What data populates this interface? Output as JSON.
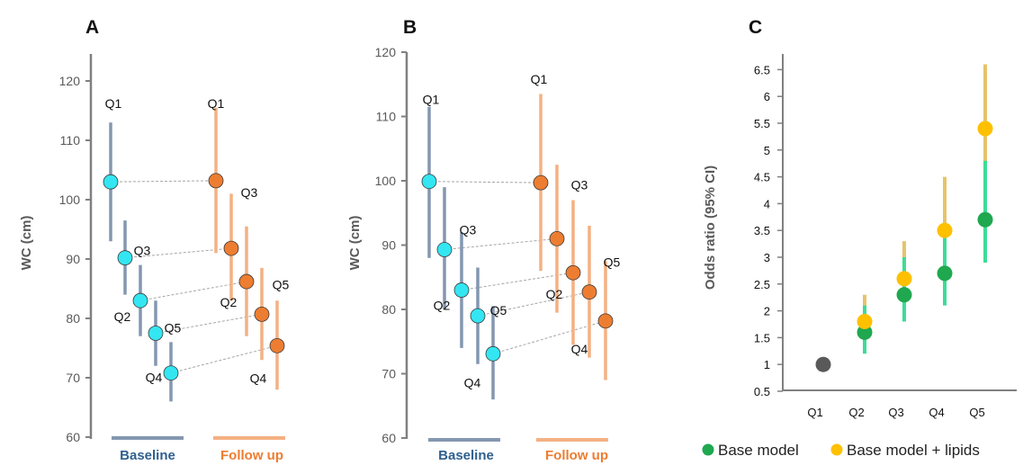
{
  "colors": {
    "axis": "#808080",
    "baseline_bar": "#8497B0",
    "baseline_dot": "#33E6F2",
    "followup_bar": "#F4B183",
    "followup_dot": "#ED7D31",
    "baseline_text": "#2E5F8F",
    "followup_text": "#ED7D31",
    "connector": "#A6A6A6",
    "base_model": "#1FA84F",
    "base_model_ci": "#3DDC97",
    "lipids_model": "#FFC000",
    "lipids_ci": "#E6C36B",
    "reference": "#595959"
  },
  "chart_data": [
    {
      "panel": "A",
      "type": "scatter",
      "ylabel": "WC (cm)",
      "ylim": [
        60,
        125
      ],
      "yticks": [
        60,
        70,
        80,
        90,
        100,
        110,
        120
      ],
      "groups": [
        "Baseline",
        "Follow up"
      ],
      "series": [
        {
          "name": "Baseline",
          "points": [
            {
              "label": "Q1",
              "y": 103,
              "lo": 93,
              "hi": 113
            },
            {
              "label": "Q3",
              "y": 90.2,
              "lo": 84,
              "hi": 96.5
            },
            {
              "label": "Q2",
              "y": 83,
              "lo": 77,
              "hi": 89
            },
            {
              "label": "Q5",
              "y": 77.5,
              "lo": 72,
              "hi": 83
            },
            {
              "label": "Q4",
              "y": 70.8,
              "lo": 66,
              "hi": 76
            }
          ]
        },
        {
          "name": "Follow up",
          "points": [
            {
              "label": "Q1",
              "y": 103.2,
              "lo": 91,
              "hi": 115.5
            },
            {
              "label": "Q3",
              "y": 91.8,
              "lo": 83,
              "hi": 101
            },
            {
              "label": "Q2",
              "y": 86.2,
              "lo": 77,
              "hi": 95.5
            },
            {
              "label": "Q5",
              "y": 80.7,
              "lo": 73,
              "hi": 88.5
            },
            {
              "label": "Q4",
              "y": 75.4,
              "lo": 68,
              "hi": 83
            }
          ]
        }
      ]
    },
    {
      "panel": "B",
      "type": "scatter",
      "ylabel": "WC (cm)",
      "ylim": [
        60,
        120
      ],
      "yticks": [
        60,
        70,
        80,
        90,
        100,
        110,
        120
      ],
      "groups": [
        "Baseline",
        "Follow up"
      ],
      "series": [
        {
          "name": "Baseline",
          "points": [
            {
              "label": "Q1",
              "y": 99.9,
              "lo": 88,
              "hi": 111.5
            },
            {
              "label": "Q3",
              "y": 89.3,
              "lo": 80,
              "hi": 99
            },
            {
              "label": "Q2",
              "y": 83,
              "lo": 74,
              "hi": 92
            },
            {
              "label": "Q5",
              "y": 79,
              "lo": 71.5,
              "hi": 86.5
            },
            {
              "label": "Q4",
              "y": 73.1,
              "lo": 66,
              "hi": 80.5
            }
          ]
        },
        {
          "name": "Follow up",
          "points": [
            {
              "label": "Q1",
              "y": 99.7,
              "lo": 86,
              "hi": 113.5
            },
            {
              "label": "Q3",
              "y": 91,
              "lo": 79.5,
              "hi": 102.5
            },
            {
              "label": "Q2",
              "y": 85.7,
              "lo": 74.5,
              "hi": 97
            },
            {
              "label": "Q5",
              "y": 82.7,
              "lo": 72.5,
              "hi": 93
            },
            {
              "label": "Q4",
              "y": 78.2,
              "lo": 69,
              "hi": 87.5
            }
          ]
        }
      ]
    },
    {
      "panel": "C",
      "type": "scatter",
      "ylabel": "Odds ratio (95% CI)",
      "ylim": [
        0.5,
        6.8
      ],
      "yticks": [
        "0.5",
        "1",
        "1.5",
        "2",
        "2.5",
        "3",
        "3.5",
        "4",
        "4.5",
        "5",
        "5.5",
        "6",
        "6.5"
      ],
      "categories": [
        "Q1",
        "Q2",
        "Q3",
        "Q4",
        "Q5"
      ],
      "reference": {
        "category": "Q1",
        "value": 1
      },
      "legend": [
        "Base model",
        "Base model + lipids"
      ],
      "series": [
        {
          "name": "Base model",
          "values": [
            1,
            1.6,
            2.3,
            2.7,
            3.7
          ],
          "lo": [
            1,
            1.2,
            1.8,
            2.1,
            2.9
          ],
          "hi": [
            1,
            2.1,
            3.0,
            3.4,
            4.8
          ]
        },
        {
          "name": "Base model + lipids",
          "values": [
            1,
            1.8,
            2.6,
            3.5,
            5.4
          ],
          "lo": [
            1,
            1.5,
            2.1,
            2.6,
            4.2
          ],
          "hi": [
            1,
            2.3,
            3.3,
            4.5,
            6.6
          ]
        }
      ]
    }
  ],
  "panels": {
    "a": {
      "letter": "A",
      "ylabel": "WC (cm)",
      "baseline": "Baseline",
      "followup": "Follow up"
    },
    "b": {
      "letter": "B",
      "ylabel": "WC (cm)",
      "baseline": "Baseline",
      "followup": "Follow up"
    },
    "c": {
      "letter": "C",
      "ylabel": "Odds ratio (95% CI)"
    }
  },
  "legend": {
    "base_model": "Base model",
    "lipids_model": "Base model + lipids"
  }
}
